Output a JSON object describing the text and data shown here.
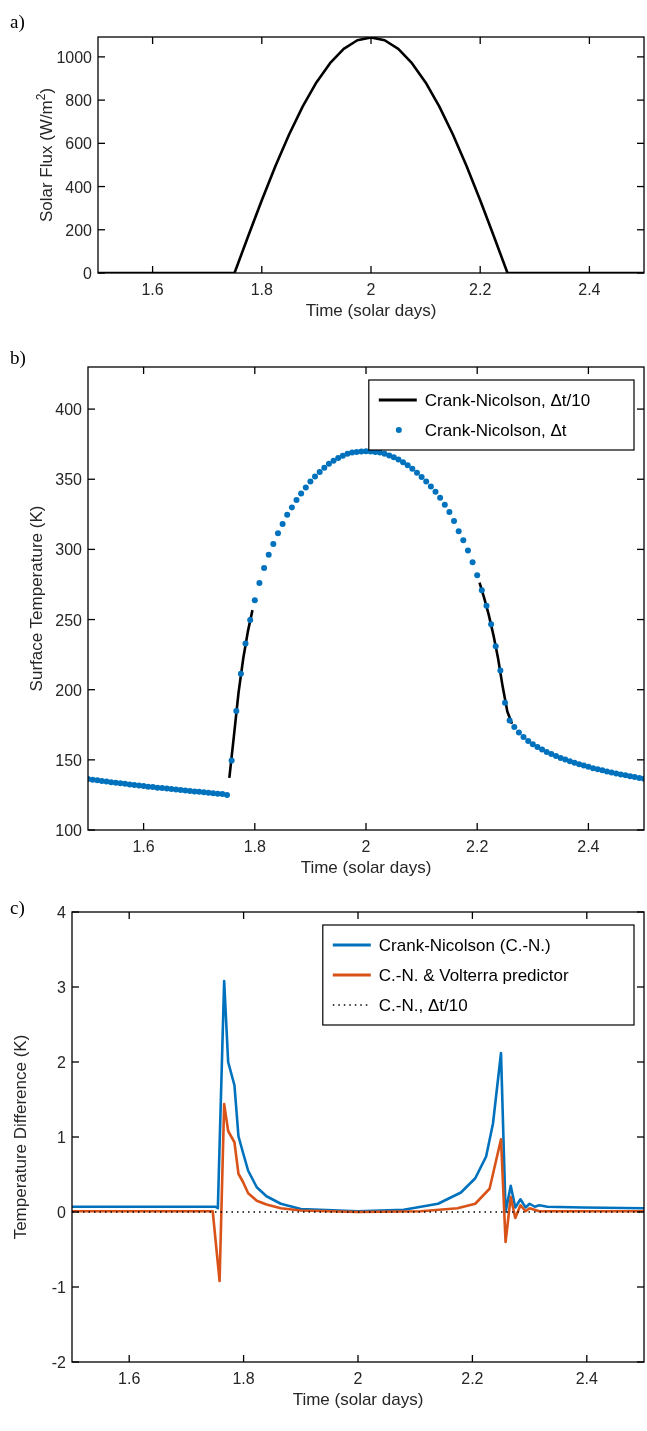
{
  "chart_data": [
    {
      "type": "line",
      "title": "a)",
      "xlabel": "Time (solar days)",
      "ylabel": "Solar Flux (W/m$^{2}$)",
      "xlim": [
        1.5,
        2.5
      ],
      "ylim": [
        0,
        1092
      ],
      "xticks": [
        {
          "value": 1.6,
          "label": "1.6"
        },
        {
          "value": 1.8,
          "label": "1.8"
        },
        {
          "value": 2,
          "label": "2"
        },
        {
          "value": 2.2,
          "label": "2.2"
        },
        {
          "value": 2.4,
          "label": "2.4"
        }
      ],
      "yticks": [
        0,
        200,
        400,
        600,
        800,
        1000
      ],
      "x": [
        1.5,
        1.75,
        1.775,
        1.8,
        1.825,
        1.85,
        1.875,
        1.9,
        1.925,
        1.95,
        1.975,
        2,
        2.025,
        2.05,
        2.075,
        2.1,
        2.125,
        2.15,
        2.175,
        2.2,
        2.225,
        2.25,
        2.5
      ],
      "series": [
        {
          "color": "#000000",
          "values": [
            0,
            0,
            170,
            337,
            495,
            641,
            771,
            882,
            971,
            1037,
            1077,
            1090,
            1077,
            1037,
            971,
            882,
            771,
            641,
            495,
            337,
            170,
            0,
            0
          ]
        }
      ]
    },
    {
      "type": "line",
      "title": "b)",
      "xlabel": "Time (solar days)",
      "ylabel": "Surface Temperature (K)",
      "xlim": [
        1.5,
        2.5
      ],
      "ylim": [
        100,
        430
      ],
      "xticks": [
        {
          "value": 1.6,
          "label": "1.6"
        },
        {
          "value": 1.8,
          "label": "1.8"
        },
        {
          "value": 2,
          "label": "2"
        },
        {
          "value": 2.2,
          "label": "2.2"
        },
        {
          "value": 2.4,
          "label": "2.4"
        }
      ],
      "yticks": [
        100,
        150,
        200,
        250,
        300,
        350,
        400
      ],
      "legend": "top right",
      "x": [
        1.5,
        1.5083,
        1.5167,
        1.525,
        1.5333,
        1.5417,
        1.55,
        1.5583,
        1.5667,
        1.575,
        1.5833,
        1.5917,
        1.6,
        1.6083,
        1.6167,
        1.625,
        1.6333,
        1.6417,
        1.65,
        1.6583,
        1.6667,
        1.675,
        1.6833,
        1.6917,
        1.7,
        1.7083,
        1.7167,
        1.725,
        1.7333,
        1.7417,
        1.75,
        1.7583,
        1.7667,
        1.775,
        1.7833,
        1.7917,
        1.8,
        1.8083,
        1.8167,
        1.825,
        1.8333,
        1.8417,
        1.85,
        1.8583,
        1.8667,
        1.875,
        1.8833,
        1.8917,
        1.9,
        1.9083,
        1.9167,
        1.925,
        1.9333,
        1.9417,
        1.95,
        1.9583,
        1.9667,
        1.975,
        1.9833,
        1.9917,
        2,
        2.0083,
        2.0167,
        2.025,
        2.0333,
        2.0417,
        2.05,
        2.0583,
        2.0667,
        2.075,
        2.0833,
        2.0917,
        2.1,
        2.1083,
        2.1167,
        2.125,
        2.1333,
        2.1417,
        2.15,
        2.1583,
        2.1667,
        2.175,
        2.1833,
        2.1917,
        2.2,
        2.2083,
        2.2167,
        2.225,
        2.2333,
        2.2417,
        2.25,
        2.2583,
        2.2667,
        2.275,
        2.2833,
        2.2917,
        2.3,
        2.3083,
        2.3167,
        2.325,
        2.3333,
        2.3417,
        2.35,
        2.3583,
        2.3667,
        2.375,
        2.3833,
        2.3917,
        2.4,
        2.4083,
        2.4167,
        2.425,
        2.4333,
        2.4417,
        2.45,
        2.4583,
        2.4667,
        2.475,
        2.4833,
        2.4917,
        2.5
      ],
      "series": [
        {
          "name": "Crank-Nicolson, Δt/10",
          "color": "#000000",
          "x": [
            1.7542,
            1.7625,
            1.7708,
            1.7792,
            1.7875,
            1.7958,
            2.0,
            2.2042,
            2.2125,
            2.2208,
            2.2292,
            2.2375,
            2.2458,
            2.2542,
            2.2625
          ],
          "values": [
            137.2,
            167.2,
            198.1,
            222.2,
            241.4,
            256.7,
            null,
            276.3,
            265.4,
            253.3,
            238.9,
            222.4,
            202.2,
            184.4,
            175.7
          ]
        },
        {
          "name": "Crank-Nicolson, Δt",
          "type": "scatter",
          "marker": "circle",
          "color": "#0072bd",
          "values": [
            136.3,
            135.9,
            135.4,
            135.0,
            134.5,
            134.1,
            133.7,
            133.3,
            132.9,
            132.5,
            132.1,
            131.7,
            131.3,
            130.9,
            130.6,
            130.2,
            129.9,
            129.5,
            129.2,
            128.8,
            128.5,
            128.2,
            127.8,
            127.5,
            127.2,
            126.9,
            126.6,
            126.2,
            125.9,
            125.6,
            124.9,
            149.5,
            184.9,
            211.3,
            233.0,
            249.7,
            263.7,
            276.1,
            286.8,
            296.2,
            303.8,
            311.5,
            318.1,
            324.7,
            329.9,
            335.2,
            339.8,
            344.2,
            348.4,
            351.9,
            355.2,
            358.2,
            361.0,
            363.2,
            365.1,
            366.8,
            368.1,
            369.0,
            369.5,
            369.8,
            370.0,
            369.8,
            369.5,
            369.0,
            368.1,
            367.0,
            365.7,
            364.0,
            362.1,
            359.9,
            357.4,
            354.7,
            351.6,
            348.4,
            344.8,
            341.0,
            336.8,
            331.9,
            326.6,
            320.3,
            312.9,
            306.6,
            299.2,
            290.9,
            281.6,
            270.9,
            259.9,
            246.7,
            231.0,
            213.7,
            190.7,
            178.0,
            173.4,
            169.5,
            166.2,
            163.5,
            161.2,
            159.1,
            157.3,
            155.6,
            154.1,
            152.7,
            151.4,
            150.2,
            149.0,
            147.9,
            146.9,
            145.9,
            145.0,
            144.1,
            143.3,
            142.5,
            141.7,
            141.0,
            140.3,
            139.6,
            139.0,
            138.3,
            137.7,
            137.1,
            136.5
          ]
        }
      ]
    },
    {
      "type": "line",
      "title": "c)",
      "xlabel": "Time (solar days)",
      "ylabel": "Temperature Difference (K)",
      "xlim": [
        1.5,
        2.5
      ],
      "ylim": [
        -2,
        4
      ],
      "xticks": [
        {
          "value": 1.6,
          "label": "1.6"
        },
        {
          "value": 1.8,
          "label": "1.8"
        },
        {
          "value": 2,
          "label": "2"
        },
        {
          "value": 2.2,
          "label": "2.2"
        },
        {
          "value": 2.4,
          "label": "2.4"
        }
      ],
      "yticks": [
        -2,
        -1,
        0,
        1,
        2,
        3,
        4
      ],
      "legend": "top right",
      "series": [
        {
          "name": "Crank-Nicolson (C.-N.)",
          "color": "#0072bd",
          "x": [
            1.5,
            1.751,
            1.755,
            1.766,
            1.773,
            1.784,
            1.791,
            1.799,
            1.808,
            1.823,
            1.84,
            1.865,
            1.9,
            2,
            2.08,
            2.14,
            2.18,
            2.205,
            2.224,
            2.236,
            2.25,
            2.258,
            2.267,
            2.275,
            2.284,
            2.293,
            2.3,
            2.309,
            2.317,
            2.331,
            2.394,
            2.5
          ],
          "values": [
            0.07,
            0.07,
            0.05,
            3.08,
            2.0,
            1.69,
            1.01,
            0.79,
            0.55,
            0.33,
            0.21,
            0.11,
            0.04,
            0.01,
            0.03,
            0.11,
            0.26,
            0.45,
            0.74,
            1.18,
            2.12,
            0.0,
            0.35,
            0.06,
            0.17,
            0.06,
            0.11,
            0.07,
            0.09,
            0.07,
            0.06,
            0.05
          ]
        },
        {
          "name": "C.-N. & Volterra predictor",
          "color": "#d95319",
          "x": [
            1.5,
            1.746,
            1.758,
            1.766,
            1.773,
            1.784,
            1.791,
            1.799,
            1.808,
            1.823,
            1.84,
            1.865,
            1.9,
            2,
            2.11,
            2.174,
            2.205,
            2.23,
            2.25,
            2.258,
            2.267,
            2.275,
            2.284,
            2.293,
            2.3,
            2.317,
            2.5
          ],
          "values": [
            0.01,
            0.01,
            -0.92,
            1.44,
            1.08,
            0.93,
            0.51,
            0.4,
            0.25,
            0.15,
            0.1,
            0.05,
            0.02,
            0.0,
            0.01,
            0.05,
            0.11,
            0.31,
            0.97,
            -0.4,
            0.2,
            -0.08,
            0.09,
            0.01,
            0.05,
            0.01,
            0.01
          ]
        },
        {
          "name": "C.-N., Δt/10",
          "color": "#000000",
          "line_style": "dotted",
          "x": [
            1.5,
            2.5
          ],
          "values": [
            0,
            0
          ]
        }
      ]
    }
  ]
}
